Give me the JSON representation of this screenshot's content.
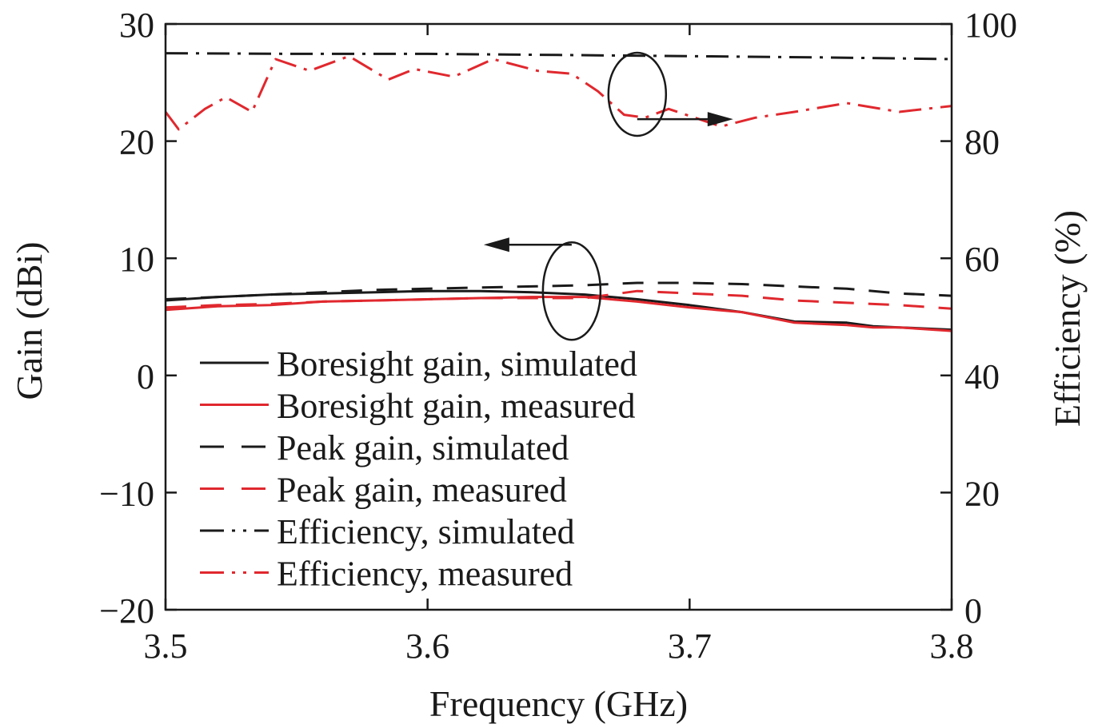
{
  "chart_data": {
    "type": "line",
    "xlabel": "Frequency (GHz)",
    "ylabel_left": "Gain (dBi)",
    "ylabel_right": "Efficiency (%)",
    "xlim": [
      3.5,
      3.8
    ],
    "ylim_left": [
      -20,
      30
    ],
    "ylim_right": [
      0,
      100
    ],
    "x_ticks": [
      "3.5",
      "3.6",
      "3.7",
      "3.8"
    ],
    "y_ticks_left": [
      "−20",
      "−10",
      "0",
      "10",
      "20",
      "30"
    ],
    "y_ticks_right": [
      "0",
      "20",
      "40",
      "60",
      "80",
      "100"
    ],
    "grid": false,
    "legend_position": "bottom-left",
    "series": [
      {
        "name": "Boresight gain, simulated",
        "axis": "left",
        "color": "#1a1a1a",
        "dash": "solid",
        "x": [
          3.5,
          3.52,
          3.54,
          3.56,
          3.58,
          3.6,
          3.62,
          3.64,
          3.66,
          3.68,
          3.7,
          3.71,
          3.72,
          3.74,
          3.76,
          3.77,
          3.78,
          3.8
        ],
        "y": [
          6.4,
          6.7,
          6.9,
          7.0,
          7.1,
          7.2,
          7.2,
          7.1,
          6.9,
          6.5,
          6.0,
          5.7,
          5.4,
          4.6,
          4.5,
          4.2,
          4.1,
          3.9
        ]
      },
      {
        "name": "Boresight gain, measured",
        "axis": "left",
        "color": "#e0282e",
        "dash": "solid",
        "x": [
          3.5,
          3.52,
          3.54,
          3.56,
          3.58,
          3.6,
          3.62,
          3.64,
          3.66,
          3.68,
          3.7,
          3.71,
          3.72,
          3.74,
          3.76,
          3.77,
          3.78,
          3.8
        ],
        "y": [
          5.6,
          5.9,
          6.0,
          6.3,
          6.4,
          6.5,
          6.6,
          6.7,
          6.7,
          6.3,
          5.8,
          5.6,
          5.4,
          4.5,
          4.3,
          4.1,
          4.1,
          3.8
        ]
      },
      {
        "name": "Peak gain, simulated",
        "axis": "left",
        "color": "#1a1a1a",
        "dash": "dashed",
        "x": [
          3.5,
          3.52,
          3.54,
          3.56,
          3.58,
          3.6,
          3.62,
          3.64,
          3.66,
          3.68,
          3.7,
          3.72,
          3.74,
          3.76,
          3.78,
          3.8
        ],
        "y": [
          6.5,
          6.7,
          6.9,
          7.1,
          7.3,
          7.4,
          7.5,
          7.6,
          7.7,
          7.9,
          7.9,
          7.8,
          7.6,
          7.4,
          7.0,
          6.8
        ]
      },
      {
        "name": "Peak gain, measured",
        "axis": "left",
        "color": "#e0282e",
        "dash": "dashed",
        "x": [
          3.5,
          3.52,
          3.54,
          3.56,
          3.58,
          3.6,
          3.62,
          3.64,
          3.66,
          3.68,
          3.7,
          3.72,
          3.74,
          3.76,
          3.78,
          3.8
        ],
        "y": [
          5.8,
          6.0,
          6.1,
          6.3,
          6.4,
          6.5,
          6.6,
          6.6,
          6.6,
          7.2,
          7.0,
          6.8,
          6.4,
          6.2,
          6.0,
          5.7
        ]
      },
      {
        "name": "Efficiency, simulated",
        "axis": "right",
        "color": "#1a1a1a",
        "dash": "dashdot",
        "x": [
          3.5,
          3.55,
          3.6,
          3.65,
          3.7,
          3.75,
          3.8
        ],
        "y": [
          95.0,
          94.9,
          94.9,
          94.7,
          94.5,
          94.3,
          94.0
        ]
      },
      {
        "name": "Efficiency, measured",
        "axis": "right",
        "color": "#e0282e",
        "dash": "dashdot",
        "x": [
          3.5,
          3.505,
          3.515,
          3.523,
          3.533,
          3.542,
          3.555,
          3.57,
          3.585,
          3.595,
          3.61,
          3.625,
          3.642,
          3.655,
          3.665,
          3.675,
          3.683,
          3.692,
          3.702,
          3.712,
          3.725,
          3.74,
          3.76,
          3.78,
          3.8
        ],
        "y": [
          85.0,
          82.0,
          85.5,
          87.5,
          85.0,
          94.0,
          92.0,
          94.5,
          90.5,
          92.3,
          91.0,
          94.0,
          92.0,
          91.5,
          88.5,
          84.5,
          84.0,
          85.5,
          84.0,
          82.5,
          84.0,
          85.0,
          86.5,
          85.0,
          86.0
        ]
      }
    ],
    "annotations": [
      {
        "type": "ellipse-arrow",
        "target_axis": "right",
        "direction": "right",
        "x": 3.68,
        "y": 88
      },
      {
        "type": "ellipse-arrow",
        "target_axis": "left",
        "direction": "left",
        "x": 3.655,
        "y": 7.2
      }
    ]
  }
}
